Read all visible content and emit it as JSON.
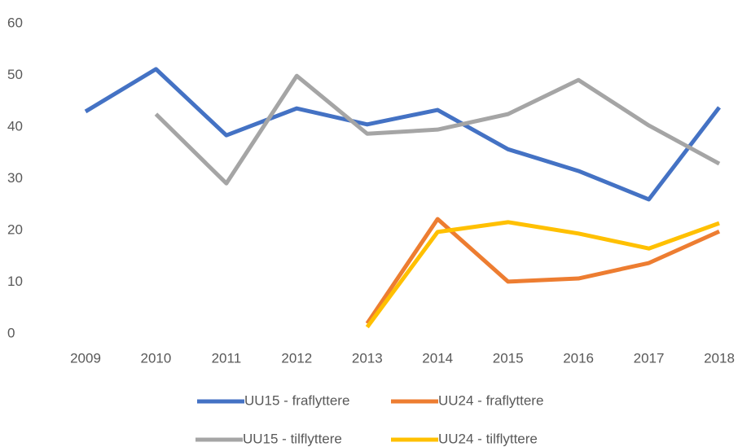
{
  "chart_data": {
    "type": "line",
    "categories": [
      "2009",
      "2010",
      "2011",
      "2012",
      "2013",
      "2014",
      "2015",
      "2016",
      "2017",
      "2018"
    ],
    "series": [
      {
        "name": "UU15 - fraflyttere",
        "color": "#4472c4",
        "values": [
          43.0,
          51.2,
          38.4,
          43.6,
          40.5,
          43.3,
          35.7,
          31.5,
          26.0,
          43.8
        ]
      },
      {
        "name": "UU24 - fraflyttere",
        "color": "#ed7d31",
        "values": [
          null,
          null,
          null,
          null,
          2.0,
          22.2,
          10.1,
          10.7,
          13.7,
          19.8
        ]
      },
      {
        "name": "UU15 - tilflyttere",
        "color": "#a5a5a5",
        "values": [
          null,
          42.5,
          29.1,
          49.9,
          38.7,
          39.5,
          42.5,
          49.1,
          40.3,
          32.9
        ]
      },
      {
        "name": "UU24 - tilflyttere",
        "color": "#ffc000",
        "values": [
          null,
          null,
          null,
          null,
          1.3,
          19.7,
          21.6,
          19.4,
          16.5,
          21.4
        ]
      }
    ],
    "ylim": [
      0,
      60
    ],
    "yticks": [
      0,
      10,
      20,
      30,
      40,
      50,
      60
    ],
    "grid": false,
    "legend": "bottom"
  }
}
